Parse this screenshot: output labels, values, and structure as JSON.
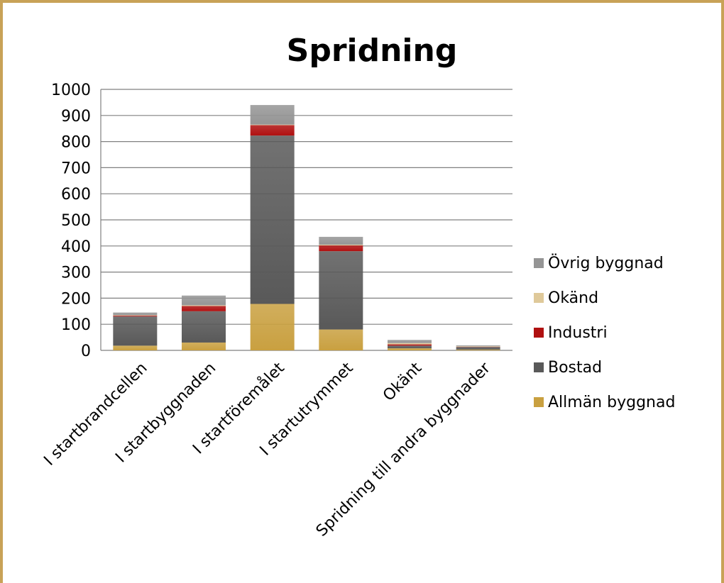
{
  "chart_data": {
    "type": "bar",
    "stacked": true,
    "title": "Spridning",
    "xlabel": "",
    "ylabel": "",
    "ylim": [
      0,
      1000
    ],
    "yticks": [
      0,
      100,
      200,
      300,
      400,
      500,
      600,
      700,
      800,
      900,
      1000
    ],
    "grid": true,
    "legend_position": "right",
    "categories": [
      "I startbrandcellen",
      "I startbyggnaden",
      "I startföremålet",
      "I startutrymmet",
      "Okänt",
      "Spridning till andra byggnader"
    ],
    "series": [
      {
        "name": "Allmän byggnad",
        "color": "#c9a040",
        "values": [
          18,
          30,
          178,
          80,
          8,
          3
        ]
      },
      {
        "name": "Bostad",
        "color": "#595959",
        "values": [
          112,
          120,
          645,
          300,
          10,
          10
        ]
      },
      {
        "name": "Industri",
        "color": "#b01010",
        "values": [
          3,
          20,
          40,
          22,
          5,
          1
        ]
      },
      {
        "name": "Okänd",
        "color": "#dfc99a",
        "values": [
          2,
          3,
          2,
          3,
          5,
          2
        ]
      },
      {
        "name": "Övrig byggnad",
        "color": "#959595",
        "values": [
          10,
          37,
          75,
          30,
          12,
          3
        ]
      }
    ]
  }
}
